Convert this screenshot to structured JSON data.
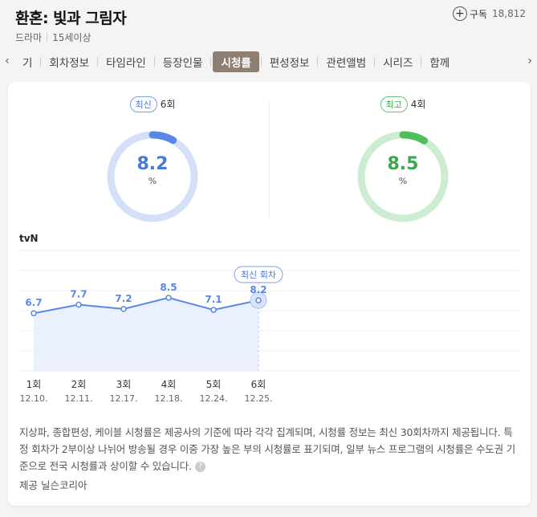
{
  "header": {
    "title": "환혼: 빛과 그림자",
    "genre": "드라마",
    "rating": "15세이상",
    "subscribe_label": "구독",
    "subscribe_count": "18,812"
  },
  "tabs": {
    "items": [
      {
        "label": "기"
      },
      {
        "label": "회차정보"
      },
      {
        "label": "타임라인"
      },
      {
        "label": "등장인물"
      },
      {
        "label": "시청률",
        "active": true
      },
      {
        "label": "편성정보"
      },
      {
        "label": "관련앨범"
      },
      {
        "label": "시리즈"
      },
      {
        "label": "함께"
      }
    ]
  },
  "gauges": {
    "latest": {
      "badge": "최신",
      "episode": "6회",
      "value": "8.2",
      "unit": "%",
      "fraction": 0.082,
      "color": "#5b87e6",
      "track": "#d4e0f8"
    },
    "best": {
      "badge": "최고",
      "episode": "4회",
      "value": "8.5",
      "unit": "%",
      "fraction": 0.085,
      "color": "#4fbf5c",
      "track": "#cdedd2"
    }
  },
  "channel": "tvN",
  "chart_data": {
    "type": "area",
    "categories": [
      "1회",
      "2회",
      "3회",
      "4회",
      "5회",
      "6회"
    ],
    "dates": [
      "12.10.",
      "12.11.",
      "12.17.",
      "12.18.",
      "12.24.",
      "12.25."
    ],
    "values": [
      6.7,
      7.7,
      7.2,
      8.5,
      7.1,
      8.2
    ],
    "value_labels": [
      "6.7",
      "7.7",
      "7.2",
      "8.5",
      "7.1",
      "8.2"
    ],
    "latest_label": "최신 회차",
    "line_color": "#5b87e6",
    "fill_color": "#eaf1fd",
    "ylim": [
      0,
      14
    ]
  },
  "notice": {
    "text": "지상파, 종합편성, 케이블 시청률은 제공사의 기준에 따라 각각 집계되며, 시청률 정보는 최신 30회차까지 제공됩니다. 특정 회차가 2부이상 나뉘어 방송될 경우 이중 가장 높은 부의 시청률로 표기되며, 일부 뉴스 프로그램의 시청률은 수도권 기준으로 전국 시청률과 상이할 수 있습니다.",
    "help": "?",
    "provider": "제공 닐슨코리아"
  }
}
